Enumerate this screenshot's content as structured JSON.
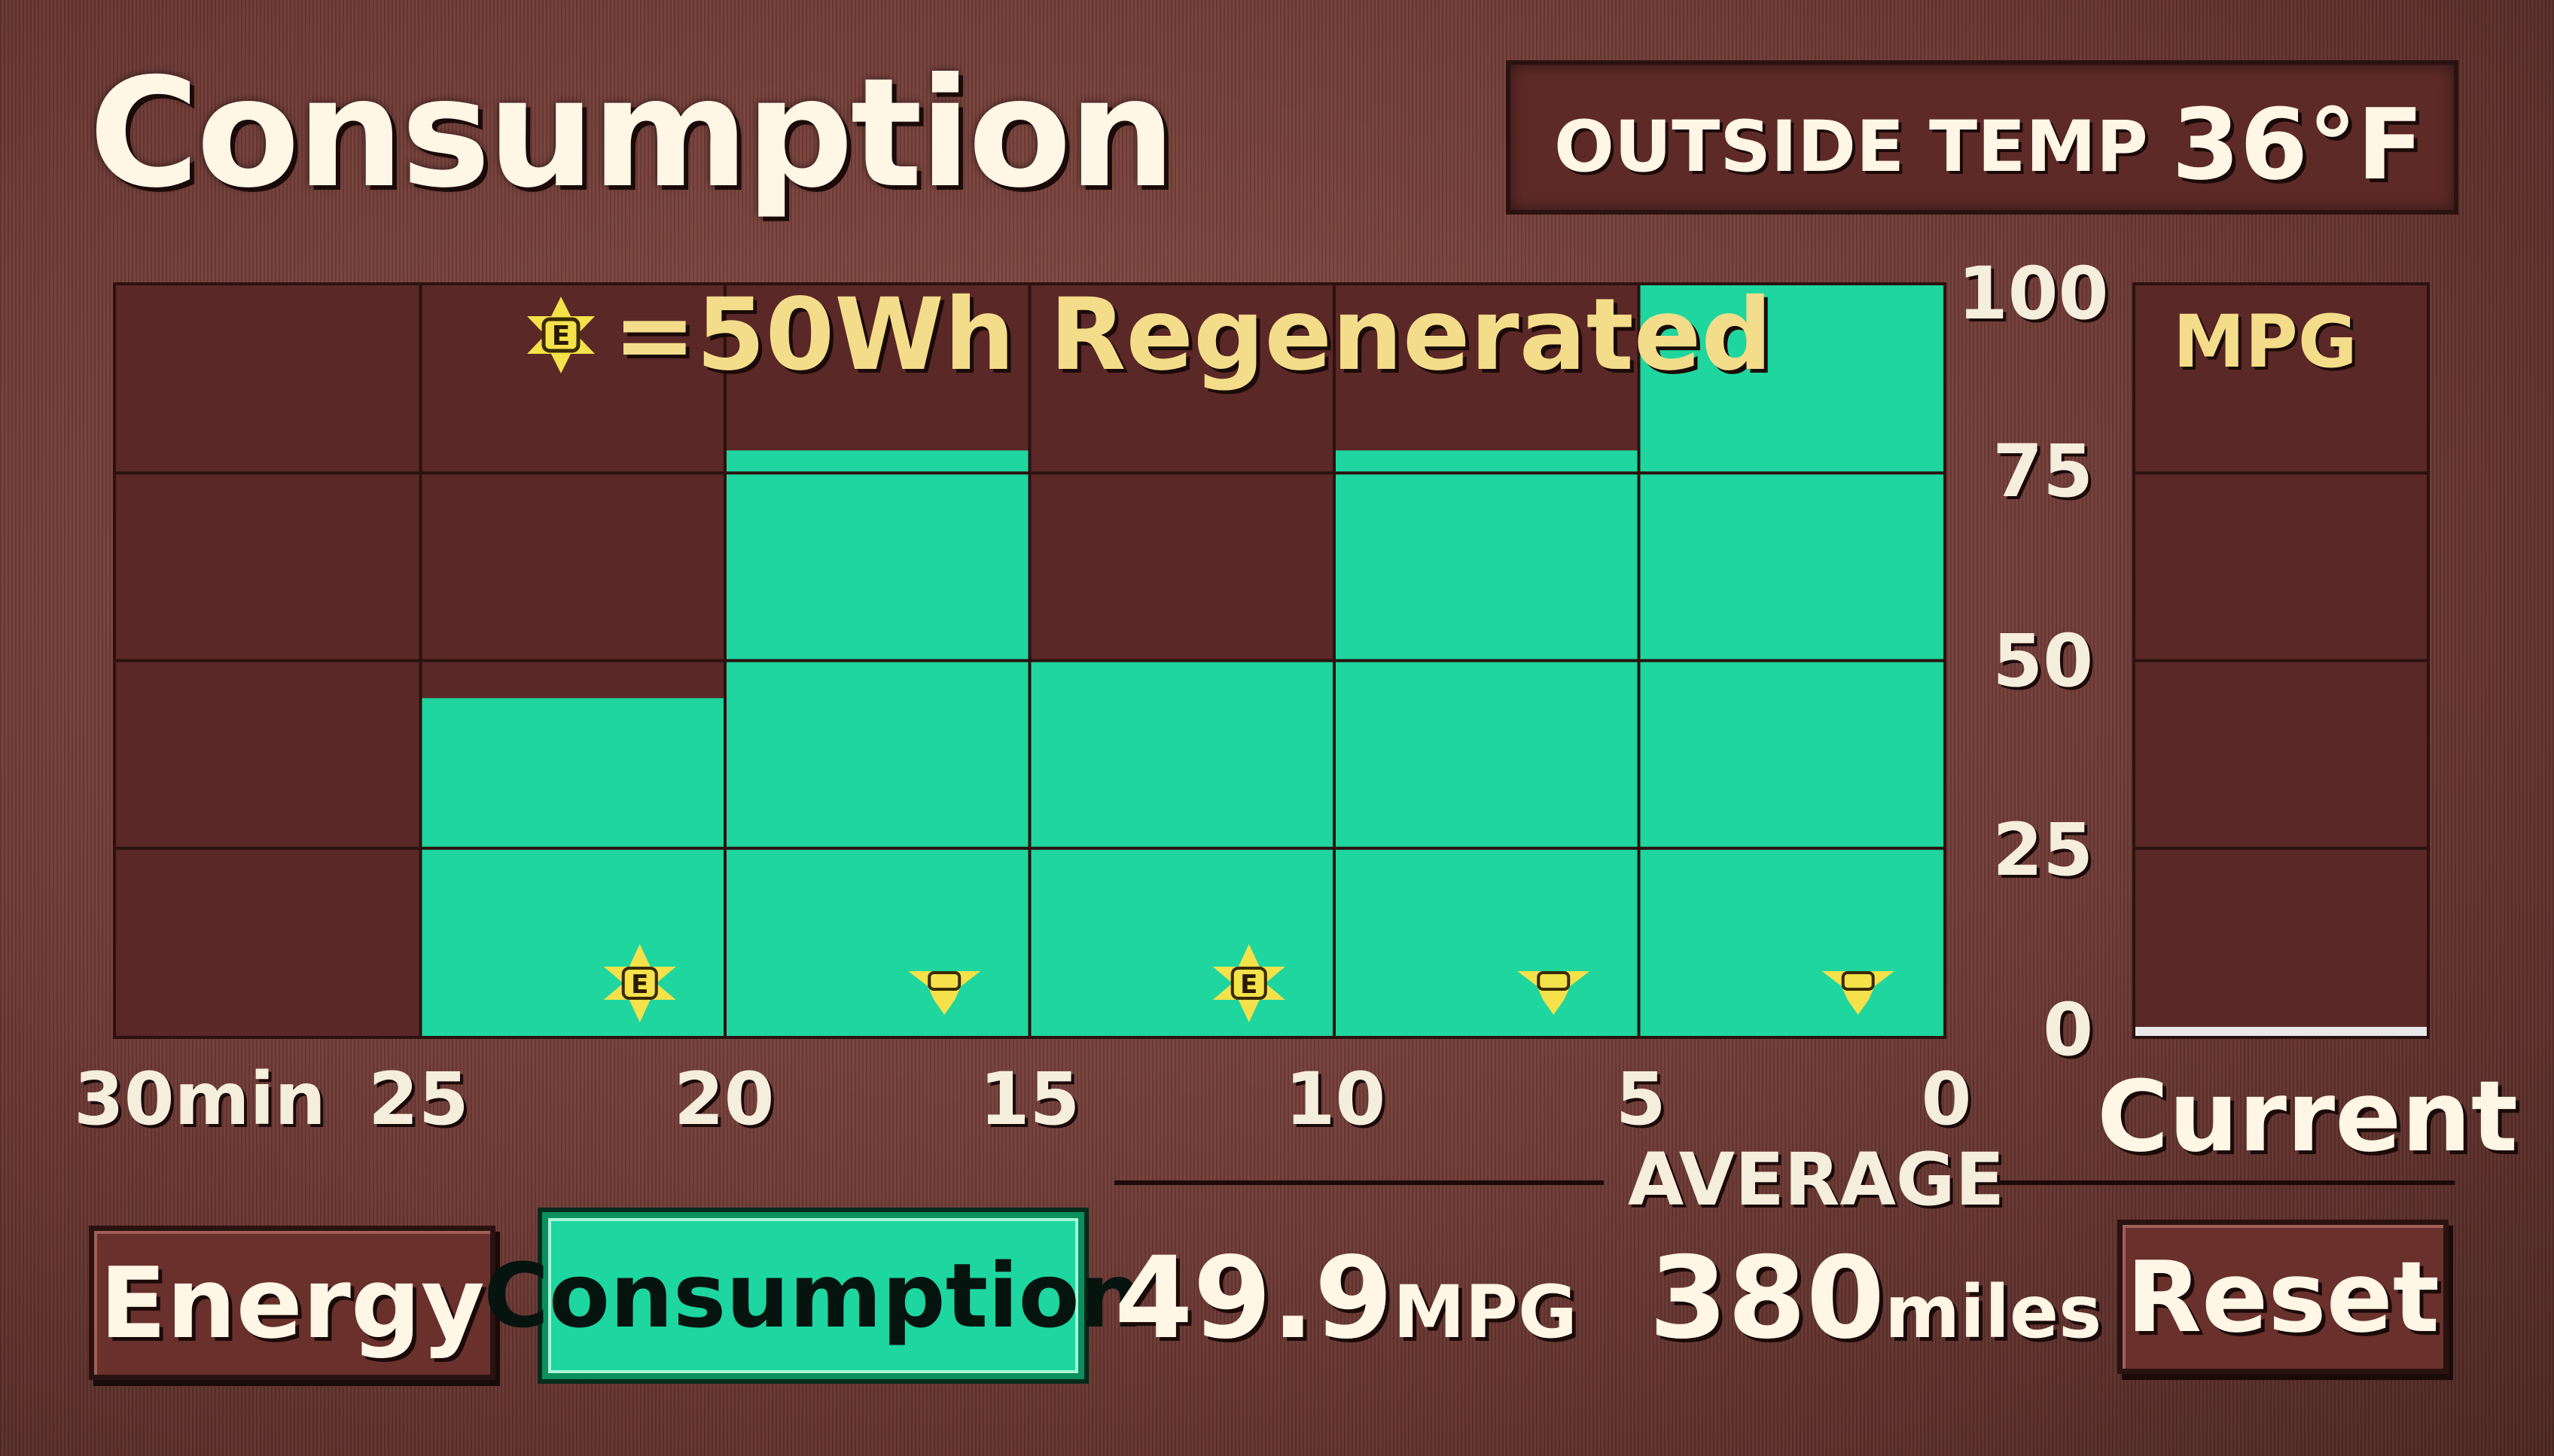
{
  "header": {
    "title": "Consumption",
    "outside_temp_label": "OUTSIDE TEMP",
    "outside_temp_value": "36°F"
  },
  "legend": {
    "icon": "regen-e-icon",
    "text": "=50Wh Regenerated"
  },
  "mpg_panel": {
    "label": "MPG",
    "current_label": "Current",
    "current_value": 0
  },
  "chart_data": {
    "type": "bar",
    "x_tick_labels": [
      "30min",
      "25",
      "20",
      "15",
      "10",
      "5",
      "0"
    ],
    "y_tick_labels": [
      "100",
      "75",
      "50",
      "25",
      "0"
    ],
    "ylim": [
      0,
      100
    ],
    "categories": [
      "30-25 min",
      "25-20 min",
      "20-15 min",
      "15-10 min",
      "10-5 min",
      "5-0 min"
    ],
    "values": [
      0,
      45,
      78,
      50,
      78,
      100
    ],
    "regenerated_icons": [
      0,
      1,
      0.5,
      1,
      0.5,
      0.5
    ],
    "grid": true,
    "colors": {
      "bar": "#1fd69e",
      "background": "#5a2826",
      "grid": "#2a1210",
      "regen_icon": "#f5e14a"
    }
  },
  "average": {
    "label": "AVERAGE",
    "mpg_value": "49.9",
    "mpg_unit": "MPG",
    "miles_value": "380",
    "miles_unit": "miles"
  },
  "buttons": {
    "energy": "Energy",
    "consumption": "Consumption",
    "reset": "Reset"
  }
}
